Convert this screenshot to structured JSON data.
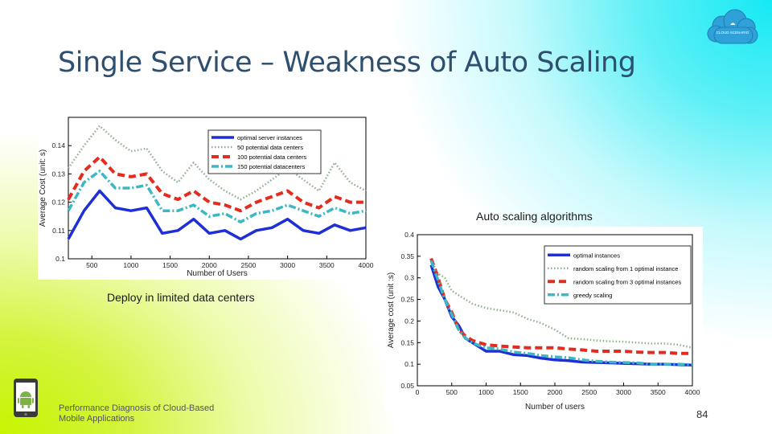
{
  "slide": {
    "title": "Single Service – Weakness of Auto Scaling",
    "logo_text": "CLOUD SCENARIO",
    "footer_line1": "Performance Diagnosis of Cloud-Based",
    "footer_line2": "Mobile Applications",
    "page_number": "84",
    "caption_left": "Deploy in limited data centers",
    "caption_right": "Auto scaling algorithms"
  },
  "chart_data": [
    {
      "type": "line",
      "title": "",
      "xlabel": "Number of Users",
      "ylabel": "Average Cost (unit: s)",
      "xlim": [
        200,
        4000
      ],
      "ylim": [
        0.1,
        0.15
      ],
      "xticks": [
        500,
        1000,
        1500,
        2000,
        2500,
        3000,
        3500,
        4000
      ],
      "yticks": [
        0.1,
        0.11,
        0.12,
        0.13,
        0.14
      ],
      "ytick_labels": [
        "0.1",
        "0.11",
        "0.12",
        "0.13",
        "0.14"
      ],
      "legend_position": "top-right",
      "x": [
        200,
        400,
        600,
        800,
        1000,
        1200,
        1400,
        1600,
        1800,
        2000,
        2200,
        2400,
        2600,
        2800,
        3000,
        3200,
        3400,
        3600,
        3800,
        4000
      ],
      "series": [
        {
          "name": "optimal server instances",
          "color": "#1f2fd6",
          "style": "solid",
          "values": [
            0.107,
            0.117,
            0.124,
            0.118,
            0.117,
            0.118,
            0.109,
            0.11,
            0.114,
            0.109,
            0.11,
            0.107,
            0.11,
            0.111,
            0.114,
            0.11,
            0.109,
            0.112,
            0.11,
            0.111
          ]
        },
        {
          "name": "50 potential data centers",
          "color": "#8fb08f",
          "style": "dotted",
          "values": [
            0.132,
            0.14,
            0.147,
            0.142,
            0.138,
            0.139,
            0.131,
            0.127,
            0.134,
            0.128,
            0.124,
            0.121,
            0.124,
            0.128,
            0.132,
            0.128,
            0.124,
            0.134,
            0.127,
            0.124
          ]
        },
        {
          "name": "100 potential data centers",
          "color": "#e52b1e",
          "style": "dashed",
          "values": [
            0.121,
            0.131,
            0.136,
            0.13,
            0.129,
            0.13,
            0.123,
            0.121,
            0.124,
            0.12,
            0.119,
            0.117,
            0.12,
            0.122,
            0.124,
            0.12,
            0.118,
            0.122,
            0.12,
            0.12
          ]
        },
        {
          "name": "150 potential datacenters",
          "color": "#3bb8c4",
          "style": "dashdot",
          "values": [
            0.117,
            0.127,
            0.131,
            0.125,
            0.125,
            0.126,
            0.117,
            0.117,
            0.119,
            0.115,
            0.116,
            0.113,
            0.116,
            0.117,
            0.119,
            0.117,
            0.115,
            0.118,
            0.116,
            0.117
          ]
        }
      ]
    },
    {
      "type": "line",
      "title": "",
      "xlabel": "Number of users",
      "ylabel": "Average cost (unit :s)",
      "xlim": [
        0,
        4000
      ],
      "ylim": [
        0.05,
        0.4
      ],
      "xticks": [
        0,
        500,
        1000,
        1500,
        2000,
        2500,
        3000,
        3500,
        4000
      ],
      "yticks": [
        0.05,
        0.1,
        0.15,
        0.2,
        0.25,
        0.3,
        0.35,
        0.4
      ],
      "ytick_labels": [
        "0.05",
        "0.1",
        "0.15",
        "0.2",
        "0.25",
        "0.3",
        "0.35",
        "0.4"
      ],
      "legend_position": "top-right",
      "x": [
        200,
        300,
        400,
        500,
        600,
        700,
        800,
        900,
        1000,
        1200,
        1400,
        1600,
        1800,
        2000,
        2200,
        2400,
        2600,
        2800,
        3000,
        3200,
        3400,
        3600,
        3800,
        4000
      ],
      "series": [
        {
          "name": "optimal instances",
          "color": "#1f2fd6",
          "style": "solid",
          "values": [
            0.33,
            0.28,
            0.25,
            0.21,
            0.19,
            0.16,
            0.15,
            0.14,
            0.13,
            0.13,
            0.122,
            0.12,
            0.114,
            0.11,
            0.108,
            0.105,
            0.104,
            0.103,
            0.102,
            0.101,
            0.1,
            0.1,
            0.099,
            0.098
          ]
        },
        {
          "name": "random scaling from 1 optimal instance",
          "color": "#8fb08f",
          "style": "dotted",
          "values": [
            0.34,
            0.31,
            0.3,
            0.27,
            0.26,
            0.25,
            0.24,
            0.235,
            0.23,
            0.225,
            0.22,
            0.205,
            0.195,
            0.18,
            0.16,
            0.158,
            0.155,
            0.153,
            0.152,
            0.15,
            0.148,
            0.148,
            0.145,
            0.138
          ]
        },
        {
          "name": "random scaling from 3 optimal instances",
          "color": "#e52b1e",
          "style": "dashed",
          "values": [
            0.345,
            0.3,
            0.25,
            0.22,
            0.18,
            0.165,
            0.155,
            0.15,
            0.145,
            0.142,
            0.14,
            0.138,
            0.138,
            0.138,
            0.135,
            0.133,
            0.13,
            0.13,
            0.13,
            0.128,
            0.127,
            0.127,
            0.125,
            0.125
          ]
        },
        {
          "name": "greedy scaling",
          "color": "#3bb8c4",
          "style": "dashdot",
          "values": [
            0.34,
            0.295,
            0.25,
            0.215,
            0.18,
            0.16,
            0.15,
            0.143,
            0.138,
            0.135,
            0.128,
            0.125,
            0.12,
            0.117,
            0.115,
            0.11,
            0.107,
            0.105,
            0.104,
            0.103,
            0.1,
            0.1,
            0.1,
            0.099
          ]
        }
      ]
    }
  ]
}
